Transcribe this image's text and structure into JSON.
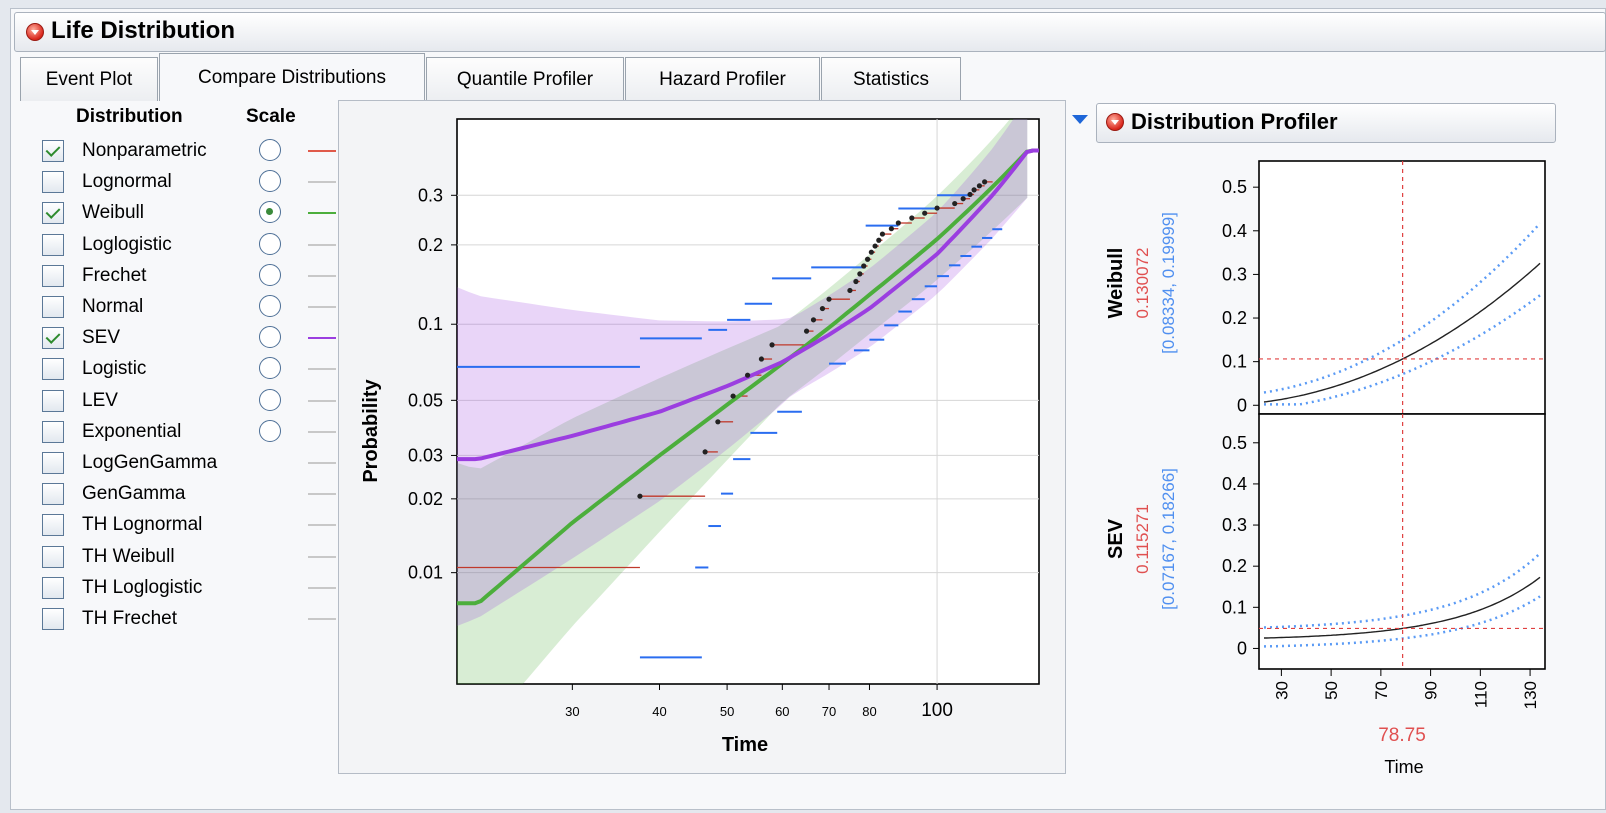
{
  "window": {
    "title": "Life Distribution"
  },
  "tabs": [
    {
      "label": "Event Plot",
      "active": false
    },
    {
      "label": "Compare Distributions",
      "active": true
    },
    {
      "label": "Quantile Profiler",
      "active": false
    },
    {
      "label": "Hazard Profiler",
      "active": false
    },
    {
      "label": "Statistics",
      "active": false
    }
  ],
  "distribution_list": {
    "header_distribution": "Distribution",
    "header_scale": "Scale",
    "items": [
      {
        "label": "Nonparametric",
        "checked": true,
        "scale": false,
        "color": "#e05a4a"
      },
      {
        "label": "Lognormal",
        "checked": false,
        "scale": false,
        "color": "#c8c8c8"
      },
      {
        "label": "Weibull",
        "checked": true,
        "scale": true,
        "color": "#4cae3c"
      },
      {
        "label": "Loglogistic",
        "checked": false,
        "scale": false,
        "color": "#c8c8c8"
      },
      {
        "label": "Frechet",
        "checked": false,
        "scale": false,
        "color": "#c8c8c8"
      },
      {
        "label": "Normal",
        "checked": false,
        "scale": false,
        "color": "#c8c8c8"
      },
      {
        "label": "SEV",
        "checked": true,
        "scale": false,
        "color": "#9b3ee0"
      },
      {
        "label": "Logistic",
        "checked": false,
        "scale": false,
        "color": "#c8c8c8"
      },
      {
        "label": "LEV",
        "checked": false,
        "scale": false,
        "color": "#c8c8c8"
      },
      {
        "label": "Exponential",
        "checked": false,
        "scale": false,
        "color": "#c8c8c8"
      },
      {
        "label": "LogGenGamma",
        "checked": false,
        "scale": null,
        "color": "#c8c8c8"
      },
      {
        "label": "GenGamma",
        "checked": false,
        "scale": null,
        "color": "#c8c8c8"
      },
      {
        "label": "TH Lognormal",
        "checked": false,
        "scale": null,
        "color": "#c8c8c8"
      },
      {
        "label": "TH Weibull",
        "checked": false,
        "scale": null,
        "color": "#c8c8c8"
      },
      {
        "label": "TH Loglogistic",
        "checked": false,
        "scale": null,
        "color": "#c8c8c8"
      },
      {
        "label": "TH Frechet",
        "checked": false,
        "scale": null,
        "color": "#c8c8c8"
      }
    ]
  },
  "profiler": {
    "title": "Distribution Profiler",
    "x_value": "78.75",
    "x_label": "Time",
    "x_ticks": [
      "30",
      "50",
      "70",
      "90",
      "110",
      "130"
    ],
    "panels": [
      {
        "name": "Weibull",
        "value": "0.130072",
        "ci": "[0.08334, 0.19999]"
      },
      {
        "name": "SEV",
        "value": "0.115271",
        "ci": "[0.07167, 0.18266]"
      }
    ],
    "y_ticks": [
      "0.5",
      "0.4",
      "0.3",
      "0.2",
      "0.1",
      "0"
    ]
  },
  "chart_data": {
    "type": "scatter",
    "xlabel": "Time",
    "ylabel": "Probability",
    "x_scale": "log",
    "y_scale": "weibull probability",
    "x_ticks": [
      "30",
      "40",
      "50",
      "60",
      "70",
      "80",
      "100"
    ],
    "y_ticks": [
      "0.3",
      "0.2",
      "0.1",
      "0.05",
      "0.03",
      "0.02",
      "0.01"
    ],
    "points": {
      "x": [
        37.5,
        46.5,
        48.5,
        51,
        53.5,
        56,
        58,
        65,
        66.5,
        68.5,
        70,
        75,
        76.5,
        77.5,
        78.5,
        79.5,
        80.5,
        81.5,
        82.5,
        83.5,
        86,
        88,
        92,
        96,
        100,
        106,
        109,
        111.5,
        113,
        115,
        117
      ],
      "y": [
        0.0205,
        0.031,
        0.041,
        0.052,
        0.063,
        0.073,
        0.083,
        0.094,
        0.104,
        0.115,
        0.125,
        0.135,
        0.146,
        0.156,
        0.167,
        0.177,
        0.188,
        0.198,
        0.208,
        0.219,
        0.229,
        0.24,
        0.25,
        0.26,
        0.271,
        0.281,
        0.292,
        0.302,
        0.313,
        0.323,
        0.333
      ]
    },
    "series": [
      {
        "name": "Weibull",
        "color": "#4cae3c",
        "x": [
          22,
          30,
          40,
          50,
          60,
          70,
          80,
          100,
          120,
          135
        ],
        "y": [
          0.0075,
          0.016,
          0.03,
          0.048,
          0.07,
          0.097,
          0.13,
          0.21,
          0.32,
          0.42
        ]
      },
      {
        "name": "SEV",
        "color": "#9b3ee0",
        "x": [
          22,
          30,
          40,
          50,
          60,
          70,
          80,
          100,
          120,
          135
        ],
        "y": [
          0.029,
          0.036,
          0.045,
          0.057,
          0.071,
          0.091,
          0.115,
          0.185,
          0.3,
          0.42
        ]
      }
    ]
  }
}
